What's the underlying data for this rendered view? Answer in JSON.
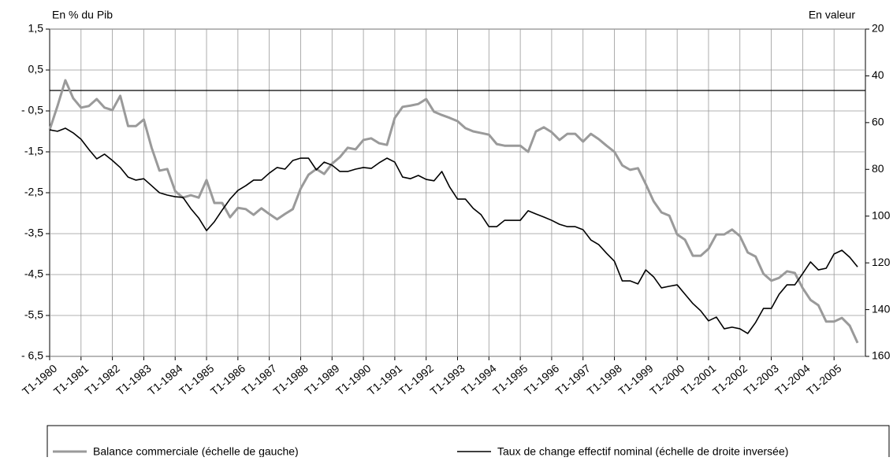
{
  "chart_data": {
    "type": "line",
    "y_axis_label": "En % du Pib",
    "y2_axis_label": "En valeur",
    "categories": [
      "T1-1980",
      null,
      null,
      null,
      "T1-1981",
      null,
      null,
      null,
      "T1-1982",
      null,
      null,
      null,
      "T1-1983",
      null,
      null,
      null,
      "T1-1984",
      null,
      null,
      null,
      "T1-1985",
      null,
      null,
      null,
      "T1-1986",
      null,
      null,
      null,
      "T1-1987",
      null,
      null,
      null,
      "T1-1988",
      null,
      null,
      null,
      "T1-1989",
      null,
      null,
      null,
      "T1-1990",
      null,
      null,
      null,
      "T1-1991",
      null,
      null,
      null,
      "T1-1992",
      null,
      null,
      null,
      "T1-1993",
      null,
      null,
      null,
      "T1-1994",
      null,
      null,
      null,
      "T1-1995",
      null,
      null,
      null,
      "T1-1996",
      null,
      null,
      null,
      "T1-1997",
      null,
      null,
      null,
      "T1-1998",
      null,
      null,
      null,
      "T1-1999",
      null,
      null,
      null,
      "T1-2000",
      null,
      null,
      null,
      "T1-2001",
      null,
      null,
      null,
      "T1-2002",
      null,
      null,
      null,
      "T1-2003",
      null,
      null,
      null,
      "T1-2004",
      null,
      null,
      null,
      "T1-2005",
      null,
      null,
      null
    ],
    "series": [
      {
        "name": "Balance commerciale (échelle de gauche)",
        "color": "#9a9a9a",
        "axis": "y",
        "values": [
          -0.96,
          -0.38,
          0.25,
          -0.19,
          -0.42,
          -0.38,
          -0.21,
          -0.42,
          -0.48,
          -0.13,
          -0.87,
          -0.87,
          -0.71,
          -1.4,
          -1.96,
          -1.92,
          -2.46,
          -2.62,
          -2.56,
          -2.62,
          -2.19,
          -2.75,
          -2.75,
          -3.1,
          -2.87,
          -2.9,
          -3.04,
          -2.88,
          -3.02,
          -3.15,
          -3.02,
          -2.9,
          -2.4,
          -2.06,
          -1.92,
          -2.04,
          -1.79,
          -1.63,
          -1.4,
          -1.44,
          -1.21,
          -1.17,
          -1.29,
          -1.33,
          -0.67,
          -0.4,
          -0.37,
          -0.33,
          -0.21,
          -0.52,
          -0.6,
          -0.67,
          -0.75,
          -0.92,
          -1.0,
          -1.04,
          -1.08,
          -1.31,
          -1.35,
          -1.35,
          -1.35,
          -1.5,
          -1.0,
          -0.9,
          -1.02,
          -1.21,
          -1.06,
          -1.06,
          -1.25,
          -1.06,
          -1.19,
          -1.35,
          -1.5,
          -1.83,
          -1.94,
          -1.9,
          -2.29,
          -2.71,
          -2.98,
          -3.06,
          -3.52,
          -3.65,
          -4.04,
          -4.04,
          -3.87,
          -3.52,
          -3.52,
          -3.4,
          -3.56,
          -3.96,
          -4.06,
          -4.48,
          -4.65,
          -4.58,
          -4.42,
          -4.46,
          -4.83,
          -5.12,
          -5.25,
          -5.65,
          -5.65,
          -5.56,
          -5.75,
          -6.17
        ]
      },
      {
        "name": "Taux de change effectif nominal (échelle de droite inversée)",
        "color": "#000000",
        "axis": "y2",
        "values": [
          63.1,
          63.7,
          62.4,
          64.4,
          67.1,
          71.5,
          75.5,
          73.5,
          76.2,
          79.2,
          83.3,
          84.6,
          84.0,
          87.0,
          90.0,
          91.0,
          91.7,
          92.0,
          96.8,
          100.8,
          106.2,
          102.4,
          97.4,
          92.7,
          89.0,
          87.0,
          84.6,
          84.6,
          81.6,
          79.2,
          79.9,
          76.2,
          75.2,
          75.2,
          80.2,
          76.9,
          78.2,
          80.9,
          80.9,
          79.9,
          79.2,
          79.6,
          77.2,
          75.2,
          76.9,
          83.3,
          84.0,
          82.6,
          84.3,
          84.9,
          80.9,
          87.6,
          92.7,
          92.7,
          96.7,
          99.4,
          104.5,
          104.5,
          101.8,
          101.8,
          101.8,
          97.7,
          99.1,
          100.4,
          101.8,
          103.5,
          104.5,
          104.5,
          105.8,
          110.2,
          112.2,
          115.9,
          119.3,
          127.7,
          127.7,
          129.0,
          123.0,
          126.0,
          130.7,
          130.0,
          129.4,
          133.4,
          137.4,
          140.5,
          144.8,
          143.2,
          148.2,
          147.5,
          148.2,
          150.2,
          145.5,
          139.5,
          139.5,
          133.4,
          129.4,
          129.4,
          124.6,
          119.6,
          123.0,
          122.3,
          116.2,
          114.6,
          117.6,
          121.7
        ]
      }
    ],
    "ylim": [
      -6.5,
      1.5
    ],
    "yticks": [
      {
        "value": 1.5,
        "label": "1,5"
      },
      {
        "value": 0.5,
        "label": "0,5"
      },
      {
        "value": -0.5,
        "label": "- 0,5"
      },
      {
        "value": -1.5,
        "label": "-1,5"
      },
      {
        "value": -2.5,
        "label": "-2,5"
      },
      {
        "value": -3.5,
        "label": "-3,5"
      },
      {
        "value": -4.5,
        "label": "-4,5"
      },
      {
        "value": -5.5,
        "label": "-5,5"
      },
      {
        "value": -6.5,
        "label": "- 6,5"
      }
    ],
    "y2lim": [
      160,
      20
    ],
    "y2ticks": [
      20,
      40,
      60,
      80,
      100,
      120,
      140,
      160
    ],
    "y2_inverted": true,
    "grid": true,
    "zero_line": true,
    "legend": "bottom"
  }
}
